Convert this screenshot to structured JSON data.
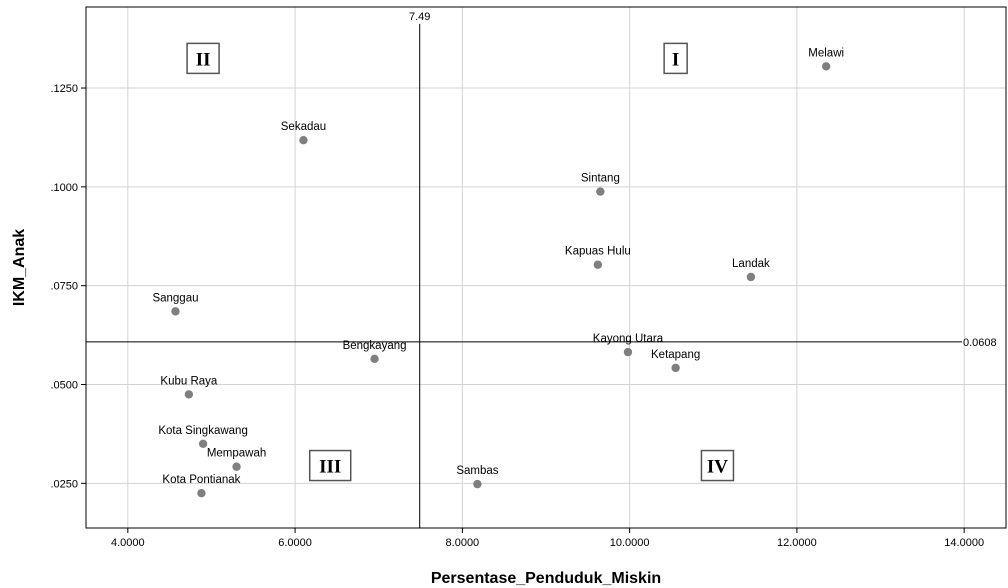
{
  "chart_data": {
    "type": "scatter",
    "title": "",
    "xlabel": "Persentase_Penduduk_Miskin",
    "ylabel": "IKM_Anak",
    "xlim": [
      3.5,
      14.5
    ],
    "ylim": [
      0.0137,
      0.1455
    ],
    "x_ticks": [
      4,
      6,
      8,
      10,
      12,
      14
    ],
    "x_tick_labels": [
      "4.0000",
      "6.0000",
      "8.0000",
      "10.0000",
      "12.0000",
      "14.0000"
    ],
    "y_ticks": [
      0.025,
      0.05,
      0.075,
      0.1,
      0.125
    ],
    "y_tick_labels": [
      ".0250",
      ".0500",
      ".0750",
      ".1000",
      ".1250"
    ],
    "grid": true,
    "points": [
      {
        "label": "Melawi",
        "x": 12.35,
        "y": 0.1305
      },
      {
        "label": "Sekadau",
        "x": 6.1,
        "y": 0.1118
      },
      {
        "label": "Sintang",
        "x": 9.65,
        "y": 0.0988
      },
      {
        "label": "Kapuas Hulu",
        "x": 9.62,
        "y": 0.0803
      },
      {
        "label": "Landak",
        "x": 11.45,
        "y": 0.0772
      },
      {
        "label": "Sanggau",
        "x": 4.57,
        "y": 0.0685
      },
      {
        "label": "Bengkayang",
        "x": 6.95,
        "y": 0.0565
      },
      {
        "label": "Kayong Utara",
        "x": 9.98,
        "y": 0.0582
      },
      {
        "label": "Ketapang",
        "x": 10.55,
        "y": 0.0542
      },
      {
        "label": "Kubu Raya",
        "x": 4.73,
        "y": 0.0475
      },
      {
        "label": "Kota Singkawang",
        "x": 4.9,
        "y": 0.035
      },
      {
        "label": "Mempawah",
        "x": 5.3,
        "y": 0.0292
      },
      {
        "label": "Kota Pontianak",
        "x": 4.88,
        "y": 0.0225
      },
      {
        "label": "Sambas",
        "x": 8.18,
        "y": 0.0248
      }
    ],
    "reference_lines": {
      "x": {
        "value": 7.49,
        "label": "7.49"
      },
      "y": {
        "value": 0.0608,
        "label": "0.0608"
      }
    },
    "quadrants": [
      {
        "label": "I",
        "x": 10.55,
        "y": 0.1325
      },
      {
        "label": "II",
        "x": 4.9,
        "y": 0.1325
      },
      {
        "label": "III",
        "x": 6.42,
        "y": 0.0295
      },
      {
        "label": "IV",
        "x": 11.05,
        "y": 0.0295
      }
    ],
    "colors": {
      "point": "#7f7f7f",
      "grid": "#d3d3d3",
      "ref_line": "#000000",
      "frame": "#000000"
    }
  }
}
